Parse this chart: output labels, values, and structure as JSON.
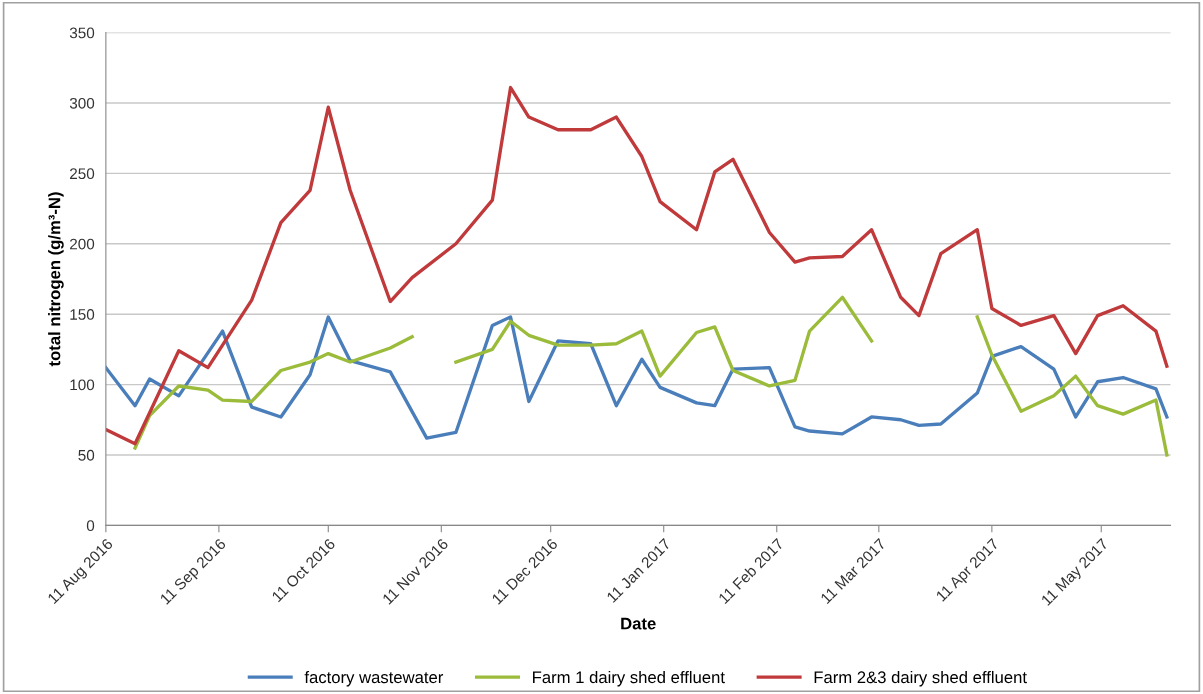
{
  "chart_data": {
    "type": "line",
    "xlabel": "Date",
    "ylabel": "total nitrogen (g/m³-N)",
    "xlim": [
      "2016-08-11",
      "2017-05-30"
    ],
    "ylim": [
      0,
      350
    ],
    "yticks": [
      0,
      50,
      100,
      150,
      200,
      250,
      300,
      350
    ],
    "xticks": [
      {
        "value": "2016-08-11",
        "label": "11 Aug 2016"
      },
      {
        "value": "2016-09-11",
        "label": "11 Sep 2016"
      },
      {
        "value": "2016-10-11",
        "label": "11 Oct 2016"
      },
      {
        "value": "2016-11-11",
        "label": "11 Nov 2016"
      },
      {
        "value": "2016-12-11",
        "label": "11 Dec 2016"
      },
      {
        "value": "2017-01-11",
        "label": "11 Jan 2017"
      },
      {
        "value": "2017-02-11",
        "label": "11 Feb 2017"
      },
      {
        "value": "2017-03-11",
        "label": "11 Mar 2017"
      },
      {
        "value": "2017-04-11",
        "label": "11 Apr 2017"
      },
      {
        "value": "2017-05-11",
        "label": "11 May 2017"
      }
    ],
    "grid": "y",
    "legend": "bottom",
    "marker": "none",
    "line_style": "solid",
    "series": [
      {
        "name": "factory wastewater",
        "color": "#4a7ebb",
        "x": [
          "2016-08-11",
          "2016-08-19",
          "2016-08-23",
          "2016-08-31",
          "2016-09-12",
          "2016-09-20",
          "2016-09-28",
          "2016-10-06",
          "2016-10-11",
          "2016-10-17",
          "2016-10-28",
          "2016-11-07",
          "2016-11-15",
          "2016-11-25",
          "2016-11-30",
          "2016-12-05",
          "2016-12-13",
          "2016-12-22",
          "2016-12-29",
          "2017-01-05",
          "2017-01-10",
          "2017-01-20",
          "2017-01-25",
          "2017-01-30",
          "2017-02-09",
          "2017-02-16",
          "2017-02-20",
          "2017-03-01",
          "2017-03-09",
          "2017-03-17",
          "2017-03-22",
          "2017-03-28",
          "2017-04-07",
          "2017-04-11",
          "2017-04-19",
          "2017-04-28",
          "2017-05-04",
          "2017-05-10",
          "2017-05-17",
          "2017-05-26",
          "2017-05-29"
        ],
        "values": [
          112,
          85,
          104,
          92,
          138,
          84,
          77,
          107,
          148,
          117,
          109,
          62,
          66,
          142,
          148,
          88,
          131,
          129,
          85,
          118,
          98,
          87,
          85,
          111,
          112,
          70,
          67,
          65,
          77,
          75,
          71,
          72,
          94,
          120,
          127,
          111,
          77,
          102,
          105,
          97,
          77
        ]
      },
      {
        "name": "Farm 1 dairy shed effluent",
        "color": "#9bbb3b",
        "x": [
          "2016-08-19",
          "2016-08-23",
          "2016-08-31",
          "2016-09-08",
          "2016-09-12",
          "2016-09-20",
          "2016-09-28",
          "2016-10-06",
          "2016-10-11",
          "2016-10-17",
          "2016-10-28",
          "2016-11-03",
          "2016-11-07",
          "2016-11-15",
          "2016-11-25",
          "2016-11-30",
          "2016-12-05",
          "2016-12-13",
          "2016-12-22",
          "2016-12-29",
          "2017-01-05",
          "2017-01-10",
          "2017-01-20",
          "2017-01-25",
          "2017-01-30",
          "2017-02-09",
          "2017-02-16",
          "2017-02-20",
          "2017-03-01",
          "2017-03-09",
          "2017-03-17",
          "2017-04-07",
          "2017-04-11",
          "2017-04-19",
          "2017-04-28",
          "2017-05-04",
          "2017-05-10",
          "2017-05-17",
          "2017-05-26",
          "2017-05-29"
        ],
        "values": [
          55,
          78,
          99,
          96,
          89,
          88,
          110,
          116,
          122,
          116,
          126,
          134,
          null,
          116,
          125,
          145,
          135,
          128,
          128,
          129,
          138,
          106,
          137,
          141,
          110,
          99,
          103,
          138,
          162,
          131,
          null,
          148,
          121,
          81,
          92,
          106,
          85,
          79,
          89,
          50
        ]
      },
      {
        "name": "Farm 2&3 dairy shed effluent",
        "color": "#c0393b",
        "x": [
          "2016-08-11",
          "2016-08-19",
          "2016-08-31",
          "2016-09-08",
          "2016-09-12",
          "2016-09-20",
          "2016-09-28",
          "2016-10-06",
          "2016-10-11",
          "2016-10-17",
          "2016-10-28",
          "2016-11-03",
          "2016-11-15",
          "2016-11-25",
          "2016-11-30",
          "2016-12-05",
          "2016-12-13",
          "2016-12-22",
          "2016-12-29",
          "2017-01-05",
          "2017-01-10",
          "2017-01-20",
          "2017-01-25",
          "2017-01-30",
          "2017-02-09",
          "2017-02-16",
          "2017-02-20",
          "2017-03-01",
          "2017-03-09",
          "2017-03-17",
          "2017-03-22",
          "2017-03-28",
          "2017-04-07",
          "2017-04-11",
          "2017-04-19",
          "2017-04-28",
          "2017-05-04",
          "2017-05-10",
          "2017-05-17",
          "2017-05-26",
          "2017-05-29"
        ],
        "values": [
          68,
          58,
          124,
          112,
          128,
          160,
          215,
          238,
          297,
          238,
          159,
          176,
          200,
          231,
          311,
          290,
          281,
          281,
          290,
          262,
          230,
          210,
          251,
          260,
          208,
          187,
          190,
          191,
          210,
          162,
          149,
          193,
          210,
          154,
          142,
          149,
          122,
          149,
          156,
          138,
          113
        ]
      }
    ]
  }
}
